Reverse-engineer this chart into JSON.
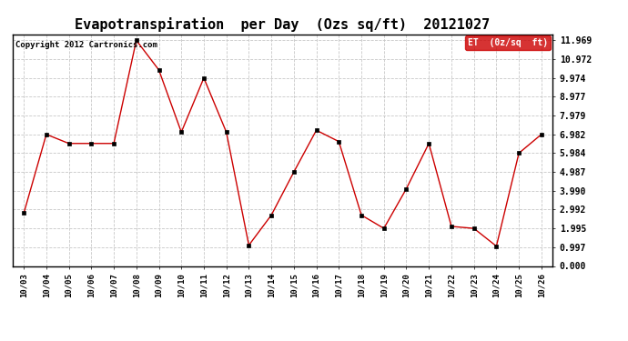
{
  "title": "Evapotranspiration  per Day  (Ozs sq/ft)  20121027",
  "copyright": "Copyright 2012 Cartronics.com",
  "legend_label": "ET  (0z/sq  ft)",
  "x_labels": [
    "10/03",
    "10/04",
    "10/05",
    "10/06",
    "10/07",
    "10/08",
    "10/09",
    "10/10",
    "10/11",
    "10/12",
    "10/13",
    "10/14",
    "10/15",
    "10/16",
    "10/17",
    "10/18",
    "10/19",
    "10/20",
    "10/21",
    "10/22",
    "10/23",
    "10/24",
    "10/25",
    "10/26"
  ],
  "y_values": [
    2.8,
    6.982,
    6.5,
    6.5,
    6.5,
    11.969,
    10.4,
    7.1,
    9.974,
    7.1,
    1.1,
    2.7,
    4.987,
    7.2,
    6.6,
    2.7,
    1.995,
    4.1,
    6.5,
    2.1,
    1.995,
    1.05,
    5.984,
    6.982
  ],
  "line_color": "#cc0000",
  "marker_color": "#000000",
  "bg_color": "#ffffff",
  "grid_color": "#c8c8c8",
  "yticks": [
    0.0,
    0.997,
    1.995,
    2.992,
    3.99,
    4.987,
    5.984,
    6.982,
    7.979,
    8.977,
    9.974,
    10.972,
    11.969
  ],
  "ylim": [
    0.0,
    12.3
  ],
  "title_fontsize": 11,
  "copyright_fontsize": 6.5,
  "tick_fontsize": 6.5,
  "ytick_fontsize": 7,
  "legend_bg": "#cc0000",
  "legend_text_color": "#ffffff",
  "legend_fontsize": 7,
  "figwidth": 6.9,
  "figheight": 3.75,
  "dpi": 100
}
